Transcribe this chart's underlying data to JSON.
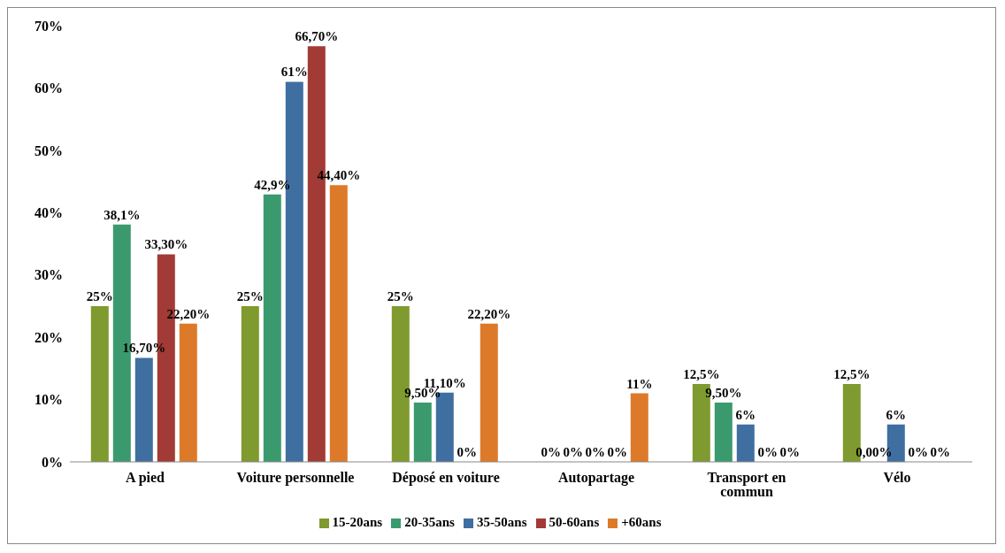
{
  "chart_data": {
    "type": "bar",
    "categories": [
      "A pied",
      "Voiture personnelle",
      "Déposé en voiture",
      "Autopartage",
      "Transport en commun",
      "Vélo"
    ],
    "series": [
      {
        "name": "15-20ans",
        "color": "#7f9a2e",
        "values": [
          25,
          25,
          25,
          0,
          12.5,
          12.5
        ],
        "value_labels": [
          "25%",
          "25%",
          "25%",
          "0%",
          "12,5%",
          "12,5%"
        ]
      },
      {
        "name": "20-35ans",
        "color": "#3a9a6e",
        "values": [
          38.1,
          42.9,
          9.5,
          0,
          9.5,
          0
        ],
        "value_labels": [
          "38,1%",
          "42,9%",
          "9,50%",
          "0%",
          "9,50%",
          "0,00%"
        ]
      },
      {
        "name": "35-50ans",
        "color": "#3f6fa0",
        "values": [
          16.7,
          61,
          11.1,
          0,
          6,
          6
        ],
        "value_labels": [
          "16,70%",
          "61%",
          "11,10%",
          "0%",
          "6%",
          "6%"
        ]
      },
      {
        "name": "50-60ans",
        "color": "#a23a35",
        "values": [
          33.3,
          66.7,
          0,
          0,
          0,
          0
        ],
        "value_labels": [
          "33,30%",
          "66,70%",
          "0%",
          "0%",
          "0%",
          "0%"
        ]
      },
      {
        "name": "+60ans",
        "color": "#dd7a2a",
        "values": [
          22.2,
          44.4,
          22.2,
          11,
          0,
          0
        ],
        "value_labels": [
          "22,20%",
          "44,40%",
          "22,20%",
          "11%",
          "0%",
          "0%"
        ]
      }
    ],
    "ylim": [
      0,
      70
    ],
    "yticks": [
      {
        "value": 0,
        "label": "0%"
      },
      {
        "value": 10,
        "label": "10%"
      },
      {
        "value": 20,
        "label": "20%"
      },
      {
        "value": 30,
        "label": "30%"
      },
      {
        "value": 40,
        "label": "40%"
      },
      {
        "value": 50,
        "label": "50%"
      },
      {
        "value": 60,
        "label": "60%"
      },
      {
        "value": 70,
        "label": "70%"
      }
    ],
    "grid": false,
    "legend": "bottom"
  }
}
